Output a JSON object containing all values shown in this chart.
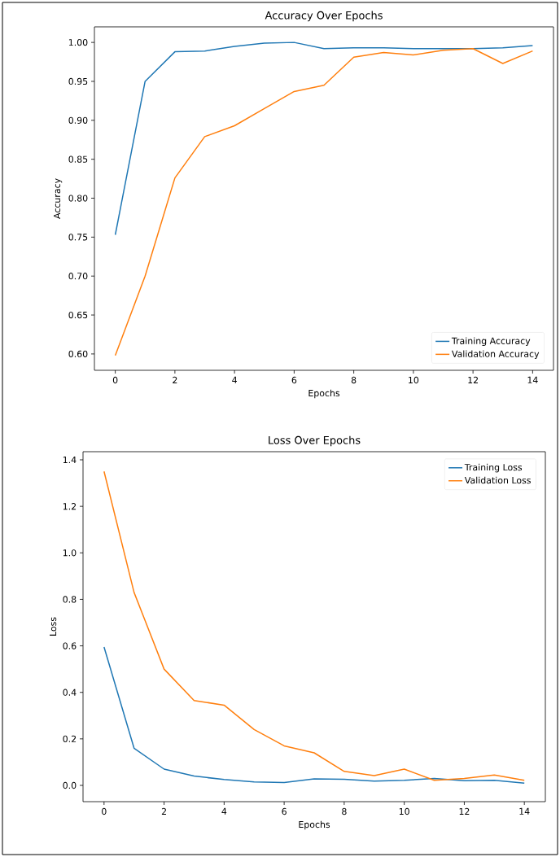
{
  "chart_data": [
    {
      "type": "line",
      "title": "Accuracy Over Epochs",
      "xlabel": "Epochs",
      "ylabel": "Accuracy",
      "x": [
        0,
        1,
        2,
        3,
        4,
        5,
        6,
        7,
        8,
        9,
        10,
        11,
        12,
        13,
        14
      ],
      "series": [
        {
          "name": "Training Accuracy",
          "color": "#1f77b4",
          "values": [
            0.753,
            0.95,
            0.988,
            0.989,
            0.995,
            0.999,
            1.0,
            0.992,
            0.993,
            0.993,
            0.992,
            0.992,
            0.992,
            0.993,
            0.996
          ]
        },
        {
          "name": "Validation Accuracy",
          "color": "#ff7f0e",
          "values": [
            0.598,
            0.7,
            0.826,
            0.879,
            0.893,
            0.915,
            0.937,
            0.945,
            0.981,
            0.987,
            0.984,
            0.99,
            0.992,
            0.973,
            0.989
          ]
        }
      ],
      "xlim": [
        -0.7,
        14.7
      ],
      "ylim": [
        0.579,
        1.02
      ],
      "xticks": [
        0,
        2,
        4,
        6,
        8,
        10,
        12,
        14
      ],
      "yticks": [
        {
          "value": 0.6,
          "label": "0.60"
        },
        {
          "value": 0.65,
          "label": "0.65"
        },
        {
          "value": 0.7,
          "label": "0.70"
        },
        {
          "value": 0.75,
          "label": "0.75"
        },
        {
          "value": 0.8,
          "label": "0.80"
        },
        {
          "value": 0.85,
          "label": "0.85"
        },
        {
          "value": 0.9,
          "label": "0.90"
        },
        {
          "value": 0.95,
          "label": "0.95"
        },
        {
          "value": 1.0,
          "label": "1.00"
        }
      ],
      "legend": "bottom right"
    },
    {
      "type": "line",
      "title": "Loss Over Epochs",
      "xlabel": "Epochs",
      "ylabel": "Loss",
      "x": [
        0,
        1,
        2,
        3,
        4,
        5,
        6,
        7,
        8,
        9,
        10,
        11,
        12,
        13,
        14
      ],
      "series": [
        {
          "name": "Training Loss",
          "color": "#1f77b4",
          "values": [
            0.595,
            0.16,
            0.07,
            0.04,
            0.025,
            0.015,
            0.012,
            0.028,
            0.026,
            0.018,
            0.022,
            0.03,
            0.02,
            0.022,
            0.01
          ]
        },
        {
          "name": "Validation Loss",
          "color": "#ff7f0e",
          "values": [
            1.35,
            0.83,
            0.5,
            0.365,
            0.345,
            0.24,
            0.17,
            0.14,
            0.06,
            0.042,
            0.07,
            0.022,
            0.03,
            0.045,
            0.022
          ]
        }
      ],
      "xlim": [
        -0.7,
        14.7
      ],
      "ylim": [
        -0.07,
        1.435
      ],
      "xticks": [
        0,
        2,
        4,
        6,
        8,
        10,
        12,
        14
      ],
      "yticks": [
        {
          "value": 0.0,
          "label": "0.0"
        },
        {
          "value": 0.2,
          "label": "0.2"
        },
        {
          "value": 0.4,
          "label": "0.4"
        },
        {
          "value": 0.6,
          "label": "0.6"
        },
        {
          "value": 0.8,
          "label": "0.8"
        },
        {
          "value": 1.0,
          "label": "1.0"
        },
        {
          "value": 1.2,
          "label": "1.2"
        },
        {
          "value": 1.4,
          "label": "1.4"
        }
      ],
      "legend": "top right"
    }
  ]
}
